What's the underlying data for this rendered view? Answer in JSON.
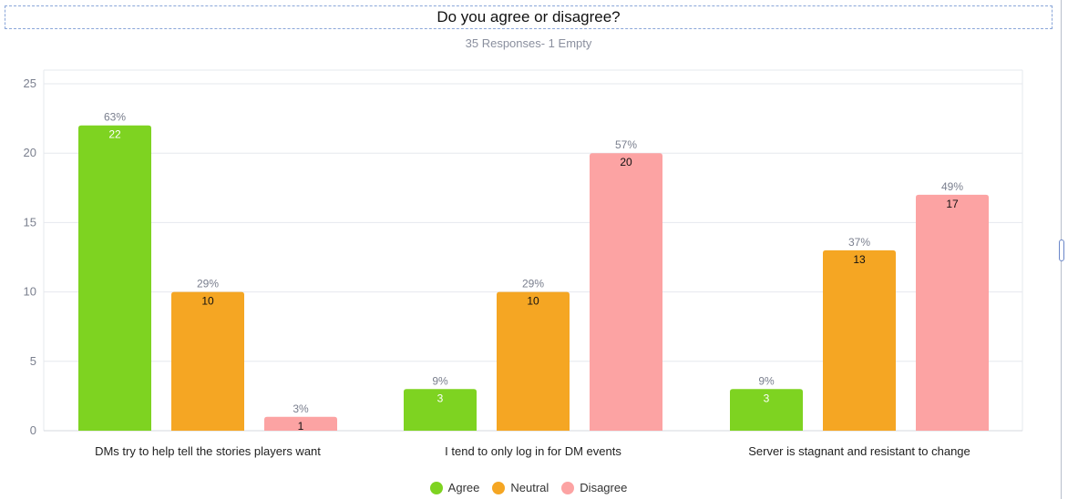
{
  "header": {
    "title": "Do you agree or disagree?",
    "subtitle": "35 Responses- 1 Empty"
  },
  "chart_data": {
    "type": "bar",
    "title": "Do you agree or disagree?",
    "subtitle": "35 Responses- 1 Empty",
    "xlabel": "",
    "ylabel": "",
    "ylim": [
      0,
      25
    ],
    "yticks": [
      0,
      5,
      10,
      15,
      20,
      25
    ],
    "grid": true,
    "legend_position": "bottom",
    "categories": [
      "DMs try to help tell the stories players want",
      "I tend to only log in for DM events",
      "Server is stagnant and resistant to change"
    ],
    "series": [
      {
        "name": "Agree",
        "color": "#7ed321",
        "label_color": "#ffffff",
        "values": [
          22,
          3,
          3
        ],
        "percents": [
          "63%",
          "9%",
          "9%"
        ]
      },
      {
        "name": "Neutral",
        "color": "#f5a623",
        "label_color": "#111111",
        "values": [
          10,
          10,
          13
        ],
        "percents": [
          "29%",
          "29%",
          "37%"
        ]
      },
      {
        "name": "Disagree",
        "color": "#fca3a3",
        "label_color": "#111111",
        "values": [
          1,
          20,
          17
        ],
        "percents": [
          "3%",
          "57%",
          "49%"
        ]
      }
    ]
  }
}
